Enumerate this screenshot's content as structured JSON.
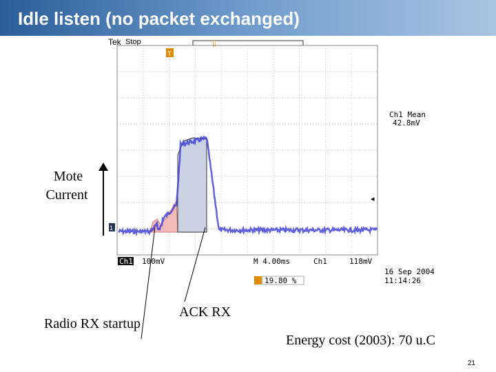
{
  "header": {
    "title": "Idle listen (no packet exchanged)"
  },
  "scope": {
    "brand": "Tek",
    "status": "Stop",
    "measure_label": "Ch1 Mean",
    "measure_value": "42.8mV",
    "channel": "Ch1",
    "volts_div": "100mV",
    "time_div": "M 4.00ms",
    "trigger_channel": "Ch1",
    "trigger_level": "118mV",
    "trigger_position": "19.80 %",
    "date": "16 Sep  2004",
    "time": "11:14:26"
  },
  "annotations": {
    "y_label_line1": "Mote",
    "y_label_line2": "Current",
    "radio_startup": "Radio RX startup",
    "ack": "ACK RX",
    "energy": "Energy cost (2003): 70 u.C"
  },
  "footer": {
    "page": "21"
  }
}
